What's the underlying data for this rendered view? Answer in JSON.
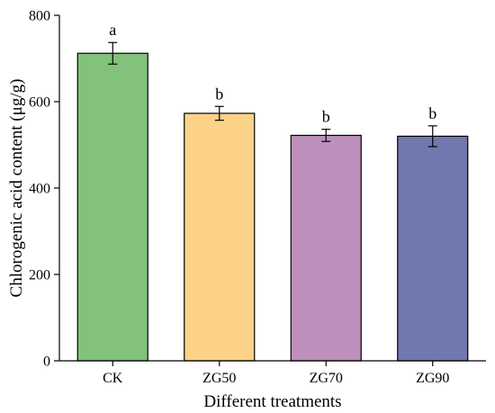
{
  "chart_data": {
    "type": "bar",
    "categories": [
      "CK",
      "ZG50",
      "ZG70",
      "ZG90"
    ],
    "values": [
      712,
      573,
      522,
      520
    ],
    "errors": [
      25,
      16,
      14,
      24
    ],
    "significance": [
      "a",
      "b",
      "b",
      "b"
    ],
    "colors": [
      "#82c27a",
      "#fbd287",
      "#bd90bb",
      "#7178ae"
    ],
    "title": "",
    "xlabel": "Different treatments",
    "ylabel": "Chlorogenic acid content (μg/g)",
    "ylim": [
      0,
      800
    ],
    "yticks": [
      0,
      200,
      400,
      600,
      800
    ],
    "grid": false,
    "legend": "none"
  }
}
